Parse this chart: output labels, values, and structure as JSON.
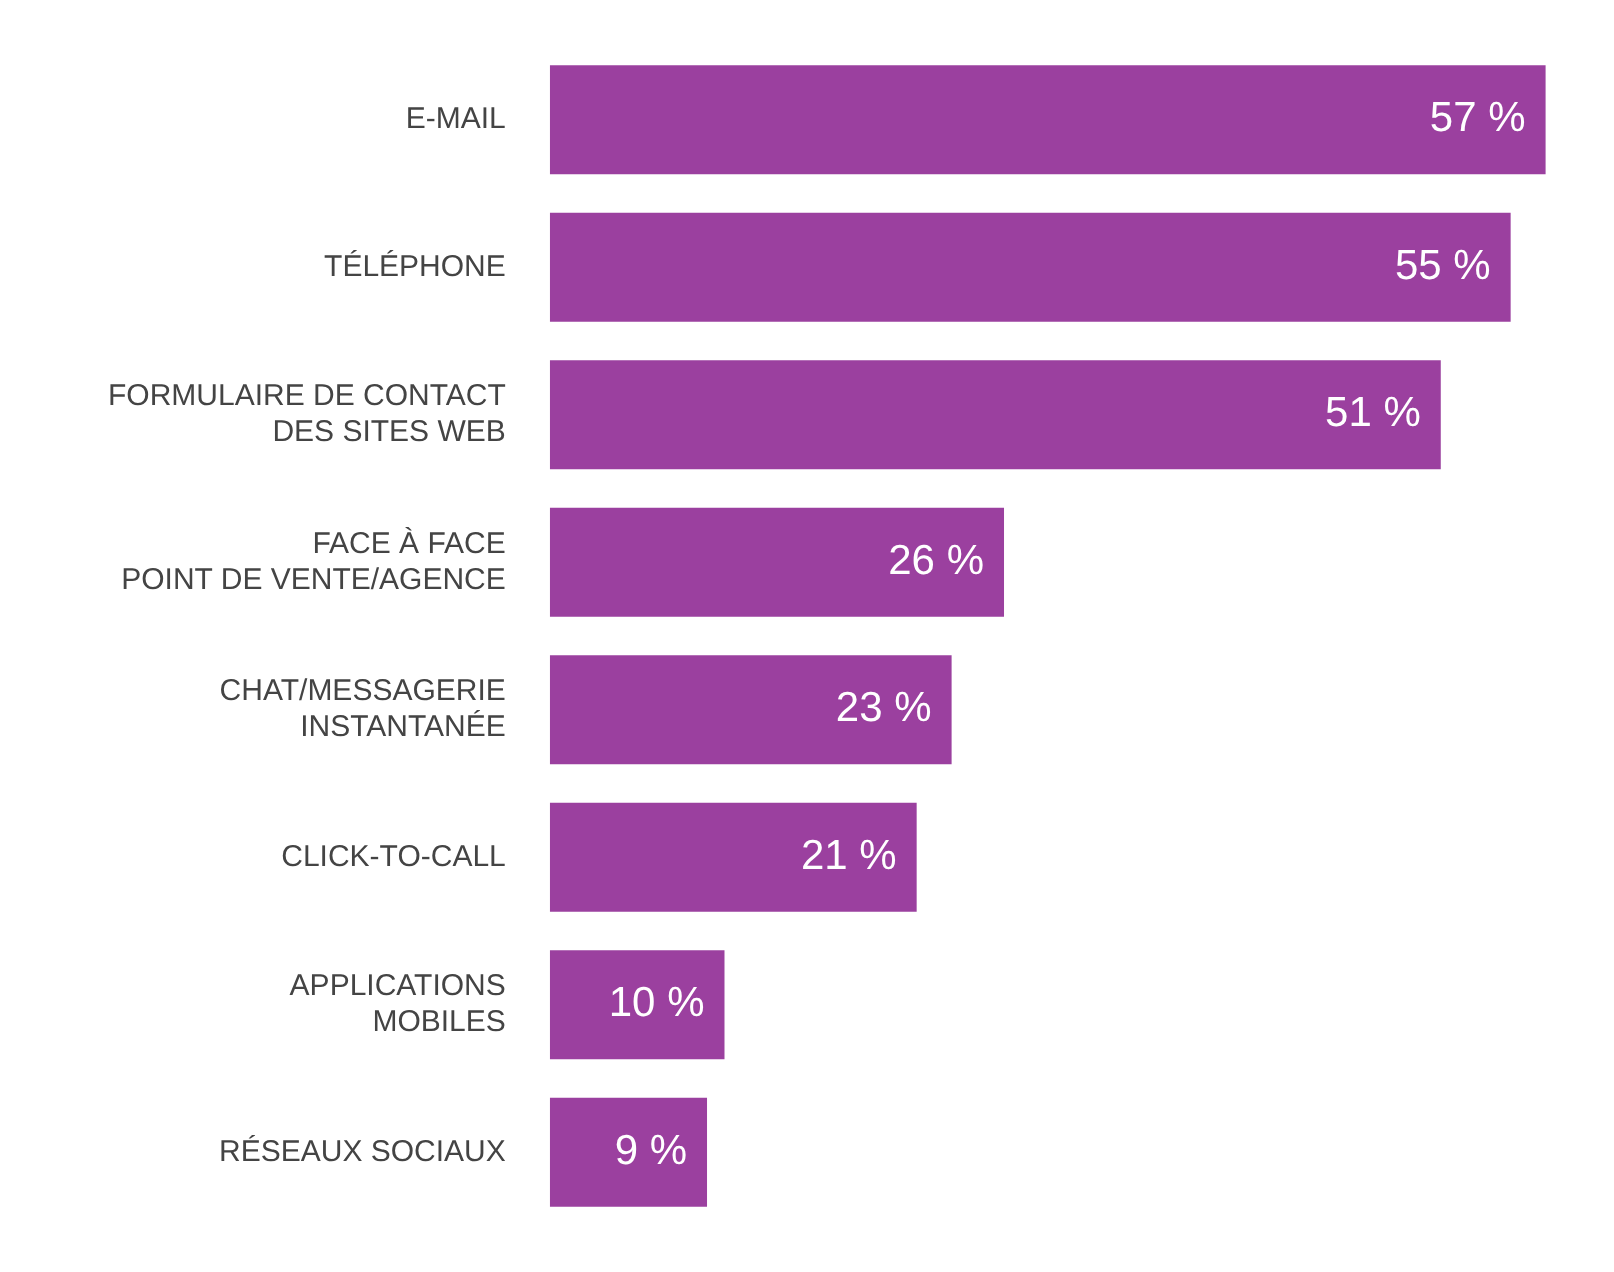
{
  "chart_data": {
    "type": "bar",
    "orientation": "horizontal",
    "categories": [
      "E-MAIL",
      "TÉLÉPHONE",
      "FORMULAIRE DE CONTACT\nDES SITES WEB",
      "FACE À FACE\nPOINT DE VENTE/AGENCE",
      "CHAT/MESSAGERIE\nINSTANTANÉE",
      "CLICK-TO-CALL",
      "APPLICATIONS\nMOBILES",
      "RÉSEAUX SOCIAUX"
    ],
    "values": [
      57,
      55,
      51,
      26,
      23,
      21,
      10,
      9
    ],
    "value_labels": [
      "57 %",
      "55 %",
      "51 %",
      "26 %",
      "23 %",
      "21 %",
      "10 %",
      "9 %"
    ],
    "color": "#9b409f"
  }
}
